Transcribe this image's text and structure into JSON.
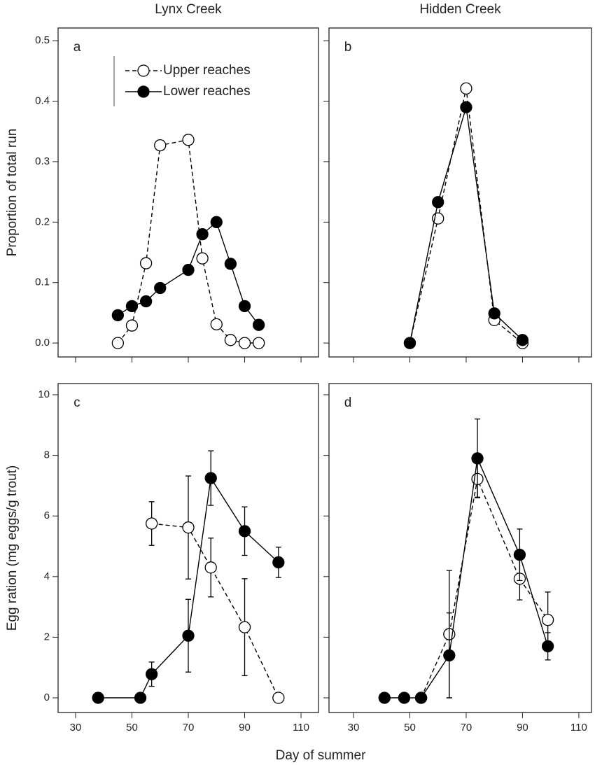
{
  "chart_data": [
    {
      "type": "line",
      "panel": "a",
      "title": "Lynx Creek",
      "ylabel": "Proportion of total run",
      "xlim": [
        23.8,
        116.2
      ],
      "ylim": [
        -0.023,
        0.521
      ],
      "xticks": [
        30,
        50,
        70,
        90,
        110
      ],
      "yticks": [
        {
          "value": 0,
          "label": "0.0"
        },
        0.1,
        0.2,
        0.3,
        0.4,
        0.5
      ],
      "legend": "upper left",
      "series": [
        {
          "name": "Upper reaches",
          "color": "#000",
          "marker": "open",
          "dashed": true,
          "x": [
            45,
            50,
            55,
            60,
            70,
            75,
            80,
            85,
            90,
            95
          ],
          "values": [
            0,
            0.029,
            0.132,
            0.327,
            0.336,
            0.14,
            0.031,
            0.005,
            0,
            0
          ]
        },
        {
          "name": "Lower reaches",
          "color": "#000",
          "marker": "filled",
          "dashed": false,
          "x": [
            45,
            50,
            55,
            60,
            70,
            75,
            80,
            85,
            90,
            95
          ],
          "values": [
            0.046,
            0.061,
            0.069,
            0.091,
            0.121,
            0.18,
            0.2,
            0.131,
            0.061,
            0.03
          ]
        }
      ]
    },
    {
      "type": "line",
      "panel": "b",
      "title": "Hidden Creek",
      "xlim": [
        21.3,
        114.5
      ],
      "ylim": [
        -0.023,
        0.521
      ],
      "xticks": [
        30,
        50,
        70,
        90,
        110
      ],
      "yticks": [
        0,
        0.1,
        0.2,
        0.3,
        0.4,
        0.5
      ],
      "series": [
        {
          "color": "#000",
          "marker": "open",
          "dashed": true,
          "x": [
            50,
            60,
            70,
            80,
            90
          ],
          "values": [
            0,
            0.206,
            0.421,
            0.038,
            0
          ]
        },
        {
          "color": "#000",
          "marker": "filled",
          "dashed": false,
          "x": [
            50,
            60,
            70,
            80,
            90
          ],
          "values": [
            0,
            0.233,
            0.39,
            0.049,
            0.005
          ]
        }
      ]
    },
    {
      "type": "line",
      "panel": "c",
      "ylabel": "Egg ration (mg eggs/g trout)",
      "xlabel": "Day of summer",
      "xlim": [
        23.8,
        116.2
      ],
      "ylim": [
        -0.485,
        10.37
      ],
      "xticks": [
        30,
        50,
        70,
        90,
        110
      ],
      "yticks": [
        0,
        2,
        4,
        6,
        8,
        10
      ],
      "series": [
        {
          "color": "#000",
          "marker": "open",
          "dashed": true,
          "x": [
            57,
            70,
            78,
            90,
            102
          ],
          "values": [
            5.75,
            5.62,
            4.3,
            2.33,
            0
          ],
          "errors": [
            0.72,
            1.7,
            0.97,
            1.6,
            null
          ]
        },
        {
          "color": "#000",
          "marker": "filled",
          "dashed": false,
          "x": [
            38,
            53,
            57,
            70,
            78,
            90,
            102
          ],
          "values": [
            0,
            0,
            0.78,
            2.05,
            7.25,
            5.5,
            4.47
          ],
          "errors": [
            null,
            null,
            0.4,
            1.2,
            0.9,
            0.8,
            0.5
          ]
        }
      ]
    },
    {
      "type": "line",
      "panel": "d",
      "xlim": [
        21.3,
        114.5
      ],
      "ylim": [
        -0.485,
        10.37
      ],
      "xticks": [
        30,
        50,
        70,
        90,
        110
      ],
      "yticks": [
        0,
        2,
        4,
        6,
        8,
        10
      ],
      "series": [
        {
          "color": "#000",
          "marker": "open",
          "dashed": true,
          "x": [
            54,
            64,
            74,
            89,
            99
          ],
          "values": [
            0,
            2.1,
            7.22,
            3.93,
            2.57
          ],
          "errors": [
            null,
            2.1,
            0.6,
            0.7,
            0.92
          ]
        },
        {
          "color": "#000",
          "marker": "filled",
          "dashed": false,
          "x": [
            41,
            48,
            54,
            64,
            74,
            89,
            99
          ],
          "values": [
            0,
            0,
            0,
            1.4,
            7.9,
            4.72,
            1.7
          ],
          "errors": [
            null,
            null,
            null,
            1.4,
            1.3,
            0.85,
            0.45
          ]
        }
      ]
    }
  ]
}
